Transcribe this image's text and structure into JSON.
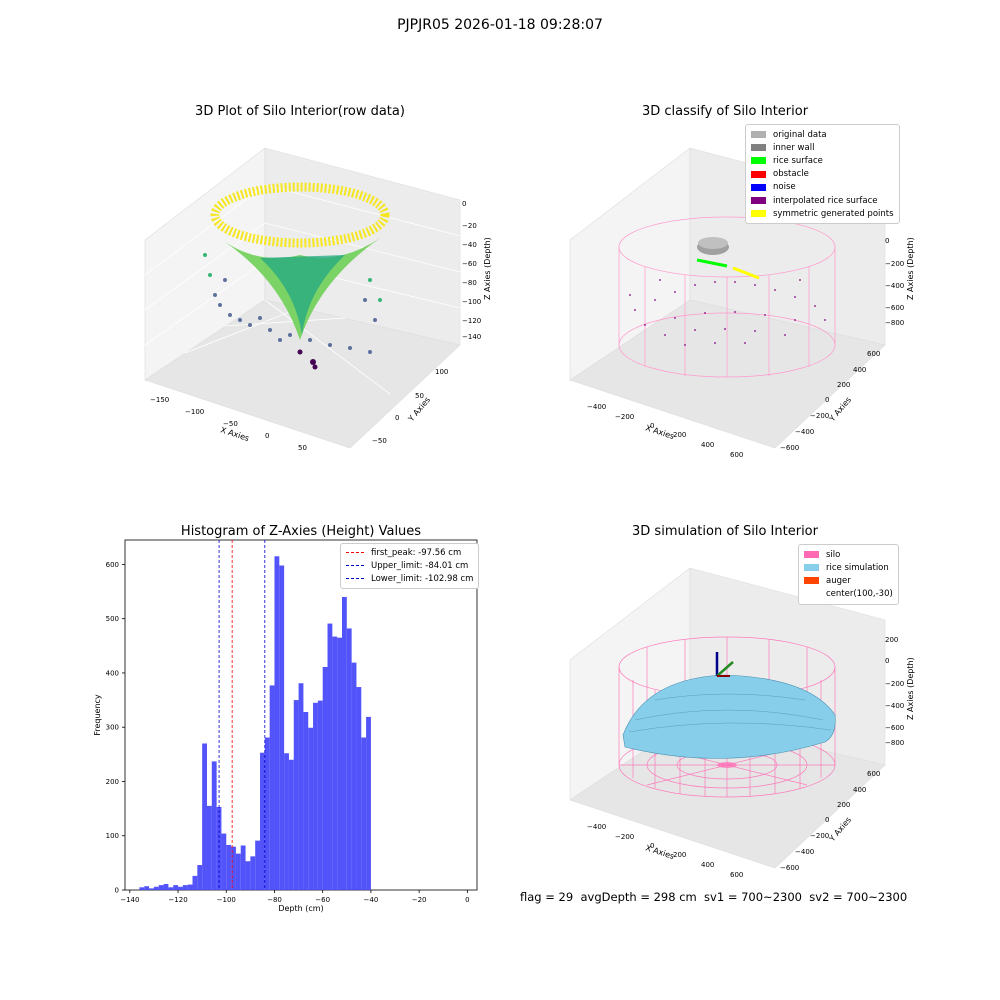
{
  "suptitle": "PJPJR05 2026-01-18 09:28:07",
  "panels": {
    "raw": {
      "title": "3D Plot of Silo Interior(row data)",
      "xlabel": "X Axies",
      "ylabel": "Y Axies",
      "zlabel": "Z Axies (Depth)",
      "xticks": [
        "−150",
        "−100",
        "−50",
        "0",
        "50"
      ],
      "yticks": [
        "−50",
        "0",
        "50",
        "100"
      ],
      "zticks": [
        "0",
        "−20",
        "−40",
        "−60",
        "−80",
        "−100",
        "−120",
        "−140"
      ]
    },
    "classify": {
      "title": "3D classify of Silo Interior",
      "xlabel": "X Axies",
      "ylabel": "Y Axies",
      "zlabel": "Z Axies (Depth)",
      "xticks": [
        "−400",
        "−200",
        "0",
        "200",
        "400",
        "600"
      ],
      "yticks": [
        "−600",
        "−400",
        "−200",
        "0",
        "200",
        "400",
        "600"
      ],
      "zticks": [
        "200",
        "0",
        "−200",
        "−400",
        "−600",
        "−800"
      ],
      "legend": [
        {
          "label": "original data",
          "color": "#b0b0b0"
        },
        {
          "label": "inner wall",
          "color": "#808080"
        },
        {
          "label": "rice surface",
          "color": "#00ff00"
        },
        {
          "label": "obstacle",
          "color": "#ff0000"
        },
        {
          "label": "noise",
          "color": "#0000ff"
        },
        {
          "label": "interpolated rice surface",
          "color": "#800080"
        },
        {
          "label": "symmetric generated points",
          "color": "#ffff00"
        }
      ]
    },
    "simulation": {
      "title": "3D simulation of Silo Interior",
      "xlabel": "X Axies",
      "ylabel": "Y Axies",
      "zlabel": "Z Axies (Depth)",
      "xticks": [
        "−400",
        "−200",
        "0",
        "200",
        "400",
        "600"
      ],
      "yticks": [
        "−600",
        "−400",
        "−200",
        "0",
        "200",
        "400",
        "600"
      ],
      "zticks": [
        "200",
        "0",
        "−200",
        "−400",
        "−600",
        "−800"
      ],
      "legend": [
        {
          "label": "silo",
          "color": "#ff69b4"
        },
        {
          "label": "rice simulation",
          "color": "#87ceeb"
        },
        {
          "label": "auger",
          "color": "#ff4500"
        },
        {
          "label": "center(100,-30)",
          "color": ""
        }
      ]
    }
  },
  "chart_data": {
    "type": "bar",
    "title": "Histogram of Z-Axies (Height) Values",
    "xlabel": "Depth (cm)",
    "ylabel": "Frequency",
    "xlim": [
      -142,
      4
    ],
    "ylim": [
      0,
      645
    ],
    "xticks": [
      -140,
      -120,
      -100,
      -80,
      -60,
      -40,
      -20,
      0
    ],
    "yticks": [
      0,
      100,
      200,
      300,
      400,
      500,
      600
    ],
    "bar_color": "#4a4afa",
    "bins": {
      "start": -136,
      "width": 2.0,
      "values": [
        5,
        7,
        3,
        6,
        9,
        11,
        5,
        9,
        6,
        9,
        10,
        26,
        46,
        270,
        155,
        237,
        153,
        104,
        83,
        80,
        67,
        82,
        53,
        62,
        91,
        253,
        281,
        377,
        615,
        598,
        252,
        240,
        350,
        381,
        328,
        299,
        345,
        349,
        411,
        491,
        467,
        465,
        540,
        482,
        419,
        374,
        281,
        319
      ]
    },
    "vlines": [
      {
        "label": "first_peak: -97.56 cm",
        "x": -97.56,
        "color": "#ff0000"
      },
      {
        "label": "Upper_limit: -84.01 cm",
        "x": -84.01,
        "color": "#0000cc"
      },
      {
        "label": "Lower_limit: -102.98 cm",
        "x": -102.98,
        "color": "#0000cc"
      }
    ]
  },
  "footer": "flag = 29  avgDepth = 298 cm  sv1 = 700~2300  sv2 = 700~2300"
}
